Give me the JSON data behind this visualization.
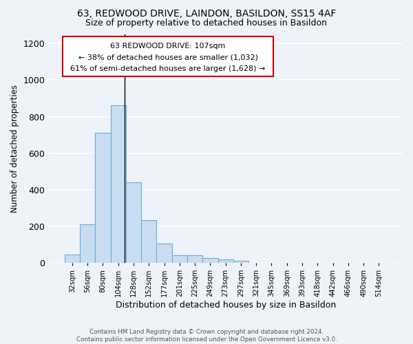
{
  "title1": "63, REDWOOD DRIVE, LAINDON, BASILDON, SS15 4AF",
  "title2": "Size of property relative to detached houses in Basildon",
  "xlabel": "Distribution of detached houses by size in Basildon",
  "ylabel": "Number of detached properties",
  "categories": [
    "32sqm",
    "56sqm",
    "80sqm",
    "104sqm",
    "128sqm",
    "152sqm",
    "177sqm",
    "201sqm",
    "225sqm",
    "249sqm",
    "273sqm",
    "297sqm",
    "321sqm",
    "345sqm",
    "369sqm",
    "393sqm",
    "418sqm",
    "442sqm",
    "466sqm",
    "490sqm",
    "514sqm"
  ],
  "values": [
    47,
    212,
    713,
    862,
    440,
    233,
    107,
    43,
    43,
    25,
    20,
    10,
    0,
    0,
    0,
    0,
    0,
    0,
    0,
    0,
    0
  ],
  "bar_color": "#c9ddf2",
  "bar_edge_color": "#6aadd5",
  "annotation_text1": "63 REDWOOD DRIVE: 107sqm",
  "annotation_text2": "← 38% of detached houses are smaller (1,032)",
  "annotation_text3": "61% of semi-detached houses are larger (1,628) →",
  "vline_color": "black",
  "annotation_box_edge": "#cc0000",
  "ylim": [
    0,
    1250
  ],
  "yticks": [
    0,
    200,
    400,
    600,
    800,
    1000,
    1200
  ],
  "footer": "Contains HM Land Registry data © Crown copyright and database right 2024.\nContains public sector information licensed under the Open Government Licence v3.0.",
  "bg_color": "#eef2fa",
  "grid_color": "white"
}
